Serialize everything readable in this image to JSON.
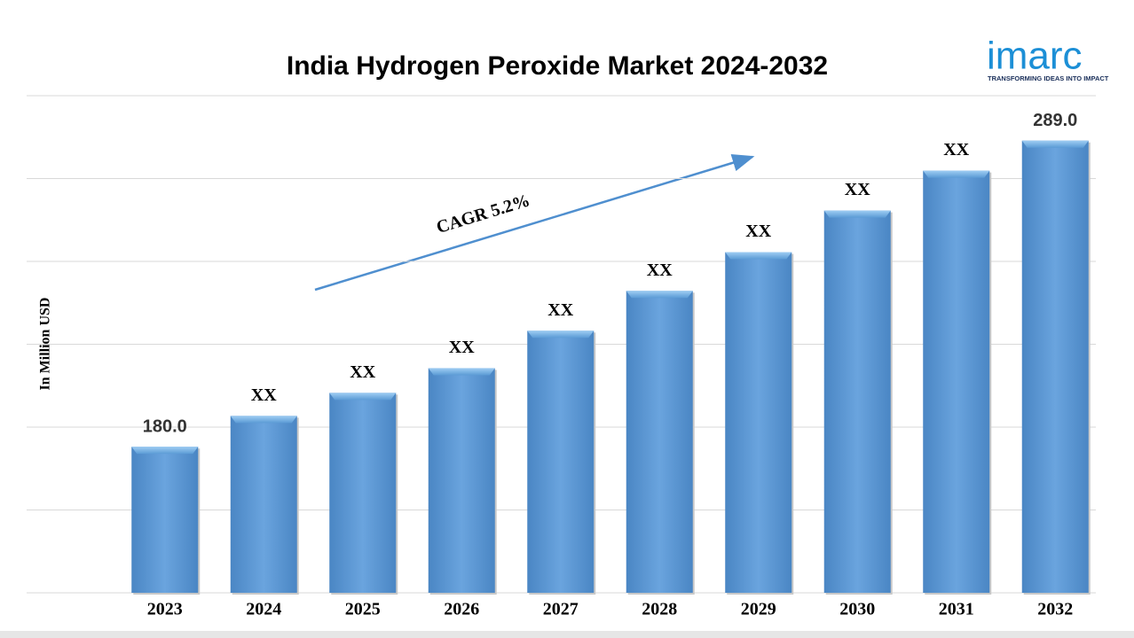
{
  "chart_data": {
    "type": "bar",
    "title": "India Hydrogen Peroxide Market 2024-2032",
    "y_label": "In Million USD",
    "annotation": "CAGR 5.2%",
    "categories": [
      "2023",
      "2024",
      "2025",
      "2026",
      "2027",
      "2028",
      "2029",
      "2030",
      "2031",
      "2032"
    ],
    "values": [
      180.0,
      191.0,
      199.2,
      208.0,
      221.3,
      235.5,
      249.3,
      264.1,
      278.3,
      289.0
    ],
    "value_labels": [
      "180.0",
      "XX",
      "XX",
      "XX",
      "XX",
      "XX",
      "XX",
      "XX",
      "XX",
      "289.0"
    ],
    "color": "#5b9bd5",
    "ylim": [
      128,
      305
    ],
    "grid": true
  },
  "brand": {
    "name": "imarc",
    "tagline": "TRANSFORMING IDEAS INTO IMPACT"
  }
}
